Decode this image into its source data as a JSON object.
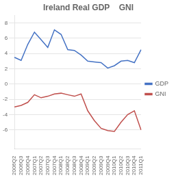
{
  "chart_data": {
    "type": "line",
    "title": "Ireland Real GDP    GNI",
    "categories": [
      "2006Q2",
      "2006Q3",
      "2006Q4",
      "2007Q1",
      "2007Q2",
      "2007Q3",
      "2007Q4",
      "2008Q1",
      "2008Q2",
      "2008Q3",
      "2008Q4",
      "2009Q1",
      "2009Q2",
      "2009Q3",
      "2009Q4",
      "2010Q1",
      "2010Q2",
      "2010Q3",
      "2010Q4",
      "2011Q1"
    ],
    "series": [
      {
        "name": "GDP",
        "color": "#4472C4",
        "values": [
          3.5,
          3.1,
          5.2,
          6.8,
          5.8,
          4.8,
          7.1,
          6.5,
          4.5,
          4.4,
          3.8,
          3.0,
          2.9,
          2.8,
          2.1,
          2.4,
          3.0,
          3.1,
          2.8,
          4.5
        ]
      },
      {
        "name": "GNI",
        "color": "#C0504D",
        "values": [
          -3.0,
          -2.8,
          -2.4,
          -1.4,
          -1.8,
          -1.6,
          -1.3,
          -1.2,
          -1.4,
          -1.6,
          -1.3,
          -3.5,
          -4.8,
          -5.8,
          -6.1,
          -6.2,
          -5.0,
          -4.0,
          -3.5,
          -6.0
        ]
      }
    ],
    "ylim": [
      -8.5,
      9.0
    ],
    "yticks": [
      -6,
      -4,
      -2,
      0,
      2,
      4,
      6,
      8
    ],
    "grid": true,
    "legend": "right"
  }
}
